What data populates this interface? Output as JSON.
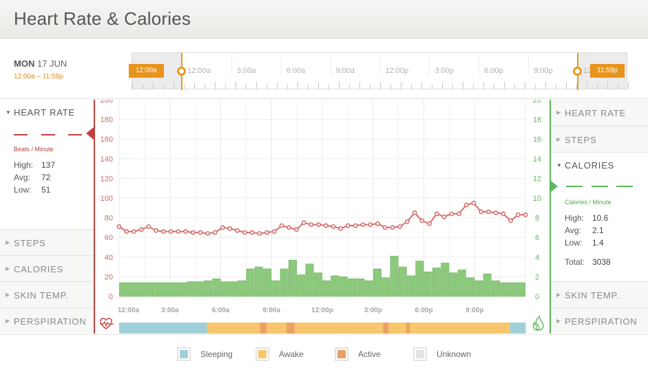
{
  "header": {
    "title": "Heart Rate & Calories"
  },
  "date": {
    "weekday": "MON",
    "day_month": "17 JUN",
    "range": "12:00a – 11:59p"
  },
  "timeline": {
    "labels": [
      "12:00a",
      "3:00a",
      "6:00a",
      "9:00a",
      "12:00p",
      "3:00p",
      "6:00p",
      "9:00p",
      "12:00a"
    ],
    "start_handle": "12:00a",
    "end_handle": "11:59p",
    "handle_color": "#e8941c"
  },
  "left_panel": {
    "sections": [
      {
        "label": "HEART RATE",
        "open": true
      },
      {
        "label": "STEPS",
        "open": false
      },
      {
        "label": "CALORIES",
        "open": false
      },
      {
        "label": "SKIN TEMP.",
        "open": false
      },
      {
        "label": "PERSPIRATION",
        "open": false
      }
    ],
    "unit": "Beats / Minute",
    "stats": [
      {
        "label": "High:",
        "value": "137"
      },
      {
        "label": "Avg:",
        "value": "72"
      },
      {
        "label": "Low:",
        "value": "51"
      }
    ],
    "color": "#c0403d"
  },
  "right_panel": {
    "sections": [
      {
        "label": "HEART RATE",
        "open": false
      },
      {
        "label": "STEPS",
        "open": false
      },
      {
        "label": "CALORIES",
        "open": true
      },
      {
        "label": "SKIN TEMP.",
        "open": false
      },
      {
        "label": "PERSPIRATION",
        "open": false
      }
    ],
    "unit": "Calories / Minute",
    "stats": [
      {
        "label": "High:",
        "value": "10.6"
      },
      {
        "label": "Avg:",
        "value": "2.1"
      },
      {
        "label": "Low:",
        "value": "1.4"
      }
    ],
    "total_label": "Total:",
    "total_value": "3038",
    "color": "#5cb85c"
  },
  "chart_data": {
    "type": "bar",
    "x_tick_labels": [
      "12:00a",
      "3:00a",
      "6:00a",
      "9:00a",
      "12:00p",
      "3:00p",
      "6:00p",
      "9:00p"
    ],
    "left_axis": {
      "ticks": [
        "0",
        "20",
        "40",
        "60",
        "80",
        "100",
        "120",
        "140",
        "160",
        "180",
        "200"
      ],
      "ylim": [
        0,
        200
      ]
    },
    "right_axis": {
      "ticks": [
        "0",
        "2",
        "4",
        "6",
        "8",
        "10",
        "12",
        "14",
        "16",
        "18",
        "20"
      ],
      "ylim": [
        0,
        20
      ]
    },
    "series": [
      {
        "type": "line",
        "axis": "left",
        "color": "#d36f6c",
        "values": [
          71,
          66,
          66,
          68,
          71,
          67,
          66,
          66,
          66,
          66,
          65,
          65,
          64,
          65,
          70,
          69,
          67,
          65,
          65,
          64,
          65,
          66,
          72,
          70,
          68,
          75,
          73,
          73,
          72,
          71,
          69,
          72,
          72,
          73,
          73,
          74,
          70,
          70,
          71,
          76,
          85,
          77,
          74,
          84,
          81,
          84,
          84,
          93,
          95,
          86,
          86,
          85,
          84,
          77,
          83,
          83
        ]
      },
      {
        "type": "bar",
        "axis": "right",
        "color": "#8cc97c",
        "values": [
          1.4,
          1.4,
          1.4,
          1.4,
          1.4,
          1.4,
          1.4,
          1.4,
          1.5,
          1.5,
          1.6,
          1.8,
          1.5,
          1.5,
          1.6,
          2.8,
          3.0,
          2.8,
          1.6,
          2.8,
          3.7,
          2.2,
          3.3,
          2.4,
          1.6,
          2.1,
          2.0,
          1.8,
          1.8,
          1.6,
          2.8,
          1.9,
          4.1,
          3.0,
          2.1,
          3.6,
          2.5,
          2.9,
          3.4,
          2.4,
          2.7,
          1.9,
          1.6,
          2.3,
          1.6,
          1.4,
          1.4,
          1.4
        ]
      }
    ],
    "grid": true
  },
  "activity_bar": {
    "segments": [
      {
        "state": "sleeping",
        "from": 0,
        "to": 0.216
      },
      {
        "state": "awake",
        "from": 0.216,
        "to": 0.347
      },
      {
        "state": "active",
        "from": 0.347,
        "to": 0.363
      },
      {
        "state": "awake",
        "from": 0.363,
        "to": 0.412
      },
      {
        "state": "active",
        "from": 0.412,
        "to": 0.432
      },
      {
        "state": "awake",
        "from": 0.432,
        "to": 0.65
      },
      {
        "state": "active",
        "from": 0.65,
        "to": 0.663
      },
      {
        "state": "awake",
        "from": 0.663,
        "to": 0.707
      },
      {
        "state": "active",
        "from": 0.707,
        "to": 0.715
      },
      {
        "state": "awake",
        "from": 0.715,
        "to": 0.962
      },
      {
        "state": "sleeping",
        "from": 0.962,
        "to": 1
      }
    ],
    "colors": {
      "sleeping": "#9fd0da",
      "awake": "#f8c66d",
      "active": "#eba164",
      "unknown": "#e2e2e2"
    }
  },
  "legend": [
    {
      "label": "Sleeping",
      "color": "#9fd0da"
    },
    {
      "label": "Awake",
      "color": "#f8c66d"
    },
    {
      "label": "Active",
      "color": "#eba164"
    },
    {
      "label": "Unknown",
      "color": "#e2e2e2"
    }
  ],
  "icons": {
    "left_axis_icon": "heart-pulse-icon",
    "right_axis_icon": "flame-icon"
  }
}
